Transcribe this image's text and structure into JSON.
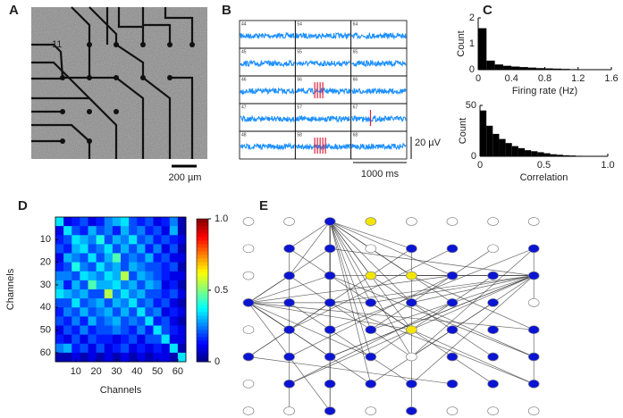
{
  "panel_labels": [
    "A",
    "B",
    "C",
    "D",
    "E"
  ],
  "panel_a": {
    "electrode_label": "11",
    "scale_bar": "200 µm"
  },
  "panel_b": {
    "traces": [
      {
        "label": "44",
        "spikes": 0
      },
      {
        "label": "54",
        "spikes": 0
      },
      {
        "label": "64",
        "spikes": 0
      },
      {
        "label": "45",
        "spikes": 0
      },
      {
        "label": "55",
        "spikes": 0
      },
      {
        "label": "65",
        "spikes": 0
      },
      {
        "label": "46",
        "spikes": 0
      },
      {
        "label": "56",
        "spikes": 4
      },
      {
        "label": "66",
        "spikes": 0
      },
      {
        "label": "47",
        "spikes": 0
      },
      {
        "label": "57",
        "spikes": 0
      },
      {
        "label": "67",
        "spikes": 1
      },
      {
        "label": "48",
        "spikes": 0
      },
      {
        "label": "58",
        "spikes": 5
      },
      {
        "label": "68",
        "spikes": 0
      }
    ],
    "trace_color": "#1e90ff",
    "spike_color": "#e0203a",
    "scale_voltage": "20 µV",
    "scale_time": "1000 ms"
  },
  "chart_data": [
    {
      "type": "histogram",
      "xlabel": "Firing rate (Hz)",
      "ylabel": "Count",
      "color": "#000000",
      "bins": [
        0,
        0.1,
        0.2,
        0.3,
        0.4,
        0.5,
        0.6,
        0.7,
        0.8,
        0.9,
        1.0,
        1.1,
        1.2,
        1.3,
        1.4,
        1.5,
        1.6
      ],
      "values": [
        1.6,
        0.35,
        0.2,
        0.15,
        0.12,
        0.1,
        0.08,
        0.06,
        0.05,
        0.04,
        0.03,
        0.02,
        0,
        0,
        0,
        0
      ],
      "xlim": [
        0,
        1.6
      ],
      "xticks": [
        0,
        0.4,
        0.8,
        1.2,
        1.6
      ],
      "ylim": [
        0,
        2
      ],
      "yticks": [
        0,
        1,
        2
      ]
    },
    {
      "type": "histogram",
      "xlabel": "Correlation",
      "ylabel": "Count",
      "color": "#000000",
      "bins": [
        0,
        0.05,
        0.1,
        0.15,
        0.2,
        0.25,
        0.3,
        0.35,
        0.4,
        0.45,
        0.5,
        0.55,
        0.6,
        0.65,
        0.7,
        0.75,
        0.8,
        0.85,
        0.9,
        0.95,
        1.0
      ],
      "values": [
        45,
        30,
        22,
        17,
        13,
        10,
        8,
        6,
        5,
        4,
        3,
        2,
        1.5,
        1,
        0.8,
        0.5,
        0.3,
        0.2,
        0.1,
        0
      ],
      "xlim": [
        0,
        1.0
      ],
      "xticks": [
        0,
        0.5,
        {
          "value": 1,
          "label": "1.0"
        }
      ],
      "ylim": [
        0,
        50
      ],
      "yticks": [
        0,
        50
      ]
    },
    {
      "type": "heatmap",
      "xlabel": "Channels",
      "ylabel": "Channels",
      "xlim": [
        0,
        64
      ],
      "ylim": [
        0,
        64
      ],
      "xticks": [
        10,
        20,
        30,
        40,
        50,
        60
      ],
      "yticks": [
        10,
        20,
        30,
        40,
        50,
        60
      ],
      "zlim": [
        0,
        1
      ],
      "zticks": [
        0,
        0.5,
        {
          "value": 1,
          "label": "1.0"
        }
      ],
      "values": [
        [
          0.35,
          0.1,
          0.15,
          0.2,
          0.1,
          0.15,
          0.25,
          0.3,
          0.35,
          0.2,
          0.15,
          0.2,
          0.1,
          0.15,
          0.25,
          0.05
        ],
        [
          0.1,
          0.35,
          0.2,
          0.15,
          0.3,
          0.2,
          0.25,
          0.15,
          0.3,
          0.2,
          0.25,
          0.15,
          0.2,
          0.1,
          0.3,
          0.05
        ],
        [
          0.15,
          0.2,
          0.35,
          0.3,
          0.25,
          0.4,
          0.2,
          0.3,
          0.25,
          0.35,
          0.2,
          0.25,
          0.15,
          0.2,
          0.15,
          0.1
        ],
        [
          0.2,
          0.15,
          0.3,
          0.35,
          0.2,
          0.25,
          0.35,
          0.2,
          0.3,
          0.2,
          0.3,
          0.15,
          0.25,
          0.1,
          0.2,
          0.05
        ],
        [
          0.1,
          0.3,
          0.25,
          0.2,
          0.35,
          0.2,
          0.3,
          0.45,
          0.2,
          0.25,
          0.2,
          0.3,
          0.15,
          0.2,
          0.1,
          0.1
        ],
        [
          0.15,
          0.2,
          0.4,
          0.25,
          0.2,
          0.35,
          0.25,
          0.3,
          0.2,
          0.3,
          0.25,
          0.2,
          0.2,
          0.15,
          0.2,
          0.05
        ],
        [
          0.25,
          0.25,
          0.2,
          0.35,
          0.3,
          0.25,
          0.35,
          0.3,
          0.55,
          0.2,
          0.3,
          0.25,
          0.2,
          0.15,
          0.1,
          0.1
        ],
        [
          0.3,
          0.15,
          0.3,
          0.2,
          0.45,
          0.3,
          0.3,
          0.35,
          0.25,
          0.3,
          0.2,
          0.3,
          0.25,
          0.1,
          0.15,
          0.05
        ],
        [
          0.35,
          0.3,
          0.25,
          0.3,
          0.2,
          0.2,
          0.55,
          0.25,
          0.35,
          0.25,
          0.3,
          0.2,
          0.2,
          0.15,
          0.2,
          0.1
        ],
        [
          0.2,
          0.2,
          0.35,
          0.2,
          0.25,
          0.3,
          0.2,
          0.3,
          0.25,
          0.35,
          0.2,
          0.25,
          0.15,
          0.2,
          0.1,
          0.05
        ],
        [
          0.15,
          0.25,
          0.2,
          0.3,
          0.2,
          0.25,
          0.3,
          0.2,
          0.3,
          0.2,
          0.35,
          0.2,
          0.25,
          0.1,
          0.15,
          0.1
        ],
        [
          0.2,
          0.15,
          0.25,
          0.15,
          0.3,
          0.2,
          0.25,
          0.3,
          0.2,
          0.25,
          0.2,
          0.35,
          0.15,
          0.2,
          0.1,
          0.05
        ],
        [
          0.1,
          0.2,
          0.15,
          0.25,
          0.15,
          0.2,
          0.2,
          0.25,
          0.2,
          0.15,
          0.25,
          0.15,
          0.35,
          0.2,
          0.15,
          0.1
        ],
        [
          0.15,
          0.1,
          0.2,
          0.1,
          0.2,
          0.15,
          0.15,
          0.1,
          0.15,
          0.2,
          0.1,
          0.2,
          0.2,
          0.35,
          0.1,
          0.1
        ],
        [
          0.25,
          0.3,
          0.15,
          0.2,
          0.1,
          0.2,
          0.1,
          0.15,
          0.2,
          0.1,
          0.15,
          0.1,
          0.15,
          0.1,
          0.35,
          0.05
        ],
        [
          0.05,
          0.05,
          0.1,
          0.05,
          0.1,
          0.05,
          0.1,
          0.05,
          0.1,
          0.05,
          0.1,
          0.05,
          0.1,
          0.1,
          0.05,
          0.35
        ]
      ]
    }
  ],
  "network": {
    "node_colors": [
      "#ffffff",
      "#ffffff",
      "#0a14d2",
      "#f2e600",
      "#ffffff",
      "#ffffff",
      "#ffffff",
      "#ffffff",
      "#ffffff",
      "#0a14d2",
      "#0a14d2",
      "#ffffff",
      "#0a14d2",
      "#0a14d2",
      "#ffffff",
      "#0a14d2",
      "#ffffff",
      "#0a14d2",
      "#0a14d2",
      "#f2e600",
      "#f2e600",
      "#0a14d2",
      "#0a14d2",
      "#0a14d2",
      "#0a14d2",
      "#0a14d2",
      "#0a14d2",
      "#0a14d2",
      "#0a14d2",
      "#0a14d2",
      "#0a14d2",
      "#ffffff",
      "#ffffff",
      "#0a14d2",
      "#0a14d2",
      "#0a14d2",
      "#f2e600",
      "#0a14d2",
      "#0a14d2",
      "#0a14d2",
      "#0a14d2",
      "#0a14d2",
      "#0a14d2",
      "#0a14d2",
      "#ffffff",
      "#0a14d2",
      "#0a14d2",
      "#0a14d2",
      "#ffffff",
      "#0a14d2",
      "#0a14d2",
      "#0a14d2",
      "#0a14d2",
      "#0a14d2",
      "#0a14d2",
      "#0a14d2",
      "#ffffff",
      "#ffffff",
      "#0a14d2",
      "#ffffff",
      "#0a14d2",
      "#ffffff",
      "#ffffff",
      "#ffffff"
    ],
    "edges": [
      [
        2,
        9
      ],
      [
        2,
        10
      ],
      [
        2,
        12
      ],
      [
        2,
        17
      ],
      [
        2,
        18
      ],
      [
        2,
        19
      ],
      [
        2,
        20
      ],
      [
        2,
        21
      ],
      [
        2,
        26
      ],
      [
        2,
        27
      ],
      [
        2,
        28
      ],
      [
        2,
        29
      ],
      [
        2,
        35
      ],
      [
        2,
        36
      ],
      [
        2,
        42
      ],
      [
        2,
        43
      ],
      [
        2,
        44
      ],
      [
        2,
        50
      ],
      [
        2,
        51
      ],
      [
        2,
        58
      ],
      [
        24,
        10
      ],
      [
        24,
        17
      ],
      [
        24,
        18
      ],
      [
        24,
        27
      ],
      [
        24,
        33
      ],
      [
        24,
        42
      ],
      [
        24,
        43
      ],
      [
        24,
        51
      ],
      [
        24,
        58
      ],
      [
        24,
        21
      ],
      [
        24,
        36
      ],
      [
        23,
        10
      ],
      [
        23,
        18
      ],
      [
        23,
        19
      ],
      [
        23,
        20
      ],
      [
        23,
        26
      ],
      [
        23,
        27
      ],
      [
        23,
        28
      ],
      [
        23,
        35
      ],
      [
        23,
        42
      ],
      [
        23,
        44
      ],
      [
        23,
        49
      ],
      [
        9,
        17
      ],
      [
        17,
        25
      ],
      [
        25,
        33
      ],
      [
        33,
        41
      ],
      [
        41,
        49
      ],
      [
        49,
        57
      ],
      [
        10,
        18
      ],
      [
        18,
        26
      ],
      [
        26,
        34
      ],
      [
        34,
        42
      ],
      [
        42,
        50
      ],
      [
        50,
        58
      ],
      [
        12,
        20
      ],
      [
        20,
        28
      ],
      [
        28,
        36
      ],
      [
        36,
        44
      ],
      [
        44,
        52
      ],
      [
        52,
        60
      ],
      [
        15,
        23
      ],
      [
        23,
        31
      ],
      [
        39,
        47
      ],
      [
        47,
        55
      ],
      [
        9,
        36
      ],
      [
        17,
        44
      ],
      [
        25,
        52
      ],
      [
        33,
        13
      ],
      [
        41,
        21
      ],
      [
        49,
        29
      ],
      [
        18,
        47
      ],
      [
        26,
        55
      ],
      [
        34,
        15
      ],
      [
        42,
        23
      ],
      [
        19,
        46
      ],
      [
        27,
        54
      ],
      [
        35,
        14
      ],
      [
        43,
        22
      ],
      [
        51,
        30
      ],
      [
        20,
        39
      ],
      [
        28,
        47
      ],
      [
        36,
        55
      ],
      [
        44,
        15
      ],
      [
        52,
        23
      ],
      [
        40,
        53
      ],
      [
        40,
        26
      ],
      [
        40,
        12
      ],
      [
        24,
        39
      ]
    ]
  }
}
